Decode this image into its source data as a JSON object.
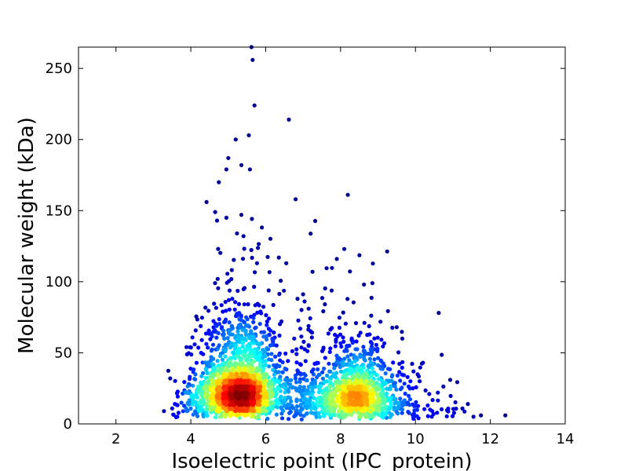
{
  "chart_data": {
    "type": "scatter",
    "title": "",
    "xlabel": "Isoelectric point (IPC_protein)",
    "ylabel": "Molecular weight (kDa)",
    "xlim": [
      1,
      14
    ],
    "ylim": [
      0,
      265
    ],
    "x_ticks": [
      2,
      4,
      6,
      8,
      10,
      12,
      14
    ],
    "y_ticks": [
      0,
      50,
      100,
      150,
      200,
      250
    ],
    "grid": false,
    "legend": "none",
    "color_scale": "jet (point density: blue = low, red = high)",
    "colors": [
      "#00008f",
      "#0000ff",
      "#0080ff",
      "#00ffff",
      "#80ff80",
      "#ffff00",
      "#ff8000",
      "#ff0000",
      "#800000"
    ],
    "density_peaks": [
      {
        "x": 5.3,
        "y": 28
      },
      {
        "x": 8.4,
        "y": 23
      }
    ],
    "outlier_points": [
      {
        "x": 5.62,
        "y": 265
      },
      {
        "x": 5.65,
        "y": 256
      },
      {
        "x": 5.7,
        "y": 224
      },
      {
        "x": 6.62,
        "y": 214
      },
      {
        "x": 5.55,
        "y": 203
      },
      {
        "x": 5.2,
        "y": 200
      },
      {
        "x": 5.0,
        "y": 187
      },
      {
        "x": 5.35,
        "y": 182
      },
      {
        "x": 5.58,
        "y": 179
      },
      {
        "x": 4.95,
        "y": 179
      },
      {
        "x": 4.75,
        "y": 170
      },
      {
        "x": 6.8,
        "y": 158
      },
      {
        "x": 4.42,
        "y": 156
      },
      {
        "x": 4.65,
        "y": 149
      },
      {
        "x": 5.35,
        "y": 147
      },
      {
        "x": 4.95,
        "y": 145
      },
      {
        "x": 4.7,
        "y": 143
      },
      {
        "x": 3.45,
        "y": 32
      },
      {
        "x": 12.4,
        "y": 6
      },
      {
        "x": 11.75,
        "y": 6
      },
      {
        "x": 11.4,
        "y": 14
      },
      {
        "x": 11.55,
        "y": 5
      },
      {
        "x": 10.2,
        "y": 43
      },
      {
        "x": 10.6,
        "y": 22
      },
      {
        "x": 9.5,
        "y": 68
      },
      {
        "x": 9.65,
        "y": 60
      },
      {
        "x": 8.1,
        "y": 123
      },
      {
        "x": 7.9,
        "y": 116
      },
      {
        "x": 8.85,
        "y": 99
      },
      {
        "x": 7.25,
        "y": 107
      },
      {
        "x": 6.35,
        "y": 117
      },
      {
        "x": 6.55,
        "y": 113
      },
      {
        "x": 6.85,
        "y": 88
      }
    ],
    "clusters": [
      {
        "x_mean": 5.3,
        "x_sd": 0.55,
        "y_log_mean": 3.25,
        "y_log_sd": 0.65,
        "count": 1700
      },
      {
        "x_mean": 8.45,
        "x_sd": 0.6,
        "y_log_mean": 3.05,
        "y_log_sd": 0.6,
        "count": 1000
      },
      {
        "x_mean": 7.1,
        "x_sd": 0.6,
        "y_log_mean": 3.1,
        "y_log_sd": 0.7,
        "count": 220
      },
      {
        "x_mean": 10.2,
        "x_sd": 0.7,
        "y_log_mean": 2.4,
        "y_log_sd": 0.6,
        "count": 60
      },
      {
        "x_mean": 4.0,
        "x_sd": 0.35,
        "y_log_mean": 2.7,
        "y_log_sd": 0.5,
        "count": 60
      }
    ]
  }
}
